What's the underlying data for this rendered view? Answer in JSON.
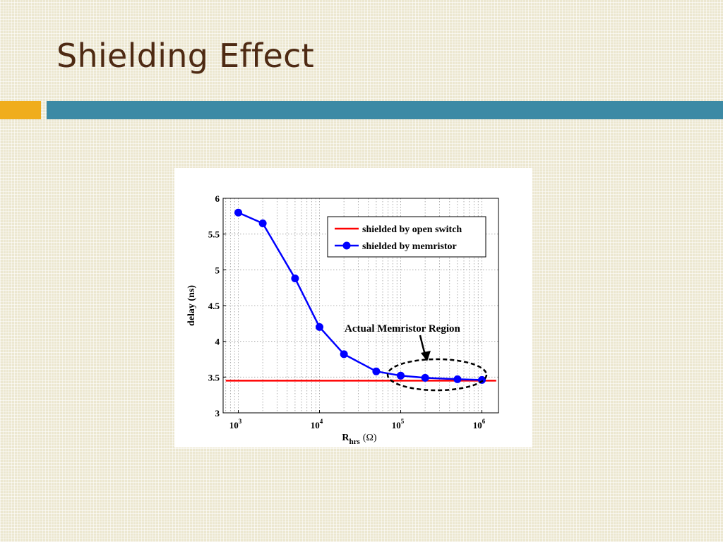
{
  "slide": {
    "title": "Shielding Effect",
    "accent_color": "#f0ad1c",
    "rule_color": "#3c8aa5",
    "title_color": "#4e2a13"
  },
  "chart_data": {
    "type": "line",
    "x_scale": "log",
    "xlabel_main": "R",
    "xlabel_sub": "hrs",
    "xlabel_unit": "(Ω)",
    "ylabel": "delay (ns)",
    "xlim": [
      650,
      1600000
    ],
    "ylim": [
      3,
      6
    ],
    "x_ticks": [
      {
        "value": 1000,
        "base": "10",
        "exp": "3"
      },
      {
        "value": 10000,
        "base": "10",
        "exp": "4"
      },
      {
        "value": 100000,
        "base": "10",
        "exp": "5"
      },
      {
        "value": 1000000,
        "base": "10",
        "exp": "6"
      }
    ],
    "y_ticks": [
      {
        "value": 3,
        "label": "3"
      },
      {
        "value": 3.5,
        "label": "3.5"
      },
      {
        "value": 4,
        "label": "4"
      },
      {
        "value": 4.5,
        "label": "4.5"
      },
      {
        "value": 5,
        "label": "5"
      },
      {
        "value": 5.5,
        "label": "5.5"
      },
      {
        "value": 6,
        "label": "6"
      }
    ],
    "grid": true,
    "legend_position": "top-right",
    "series": [
      {
        "name": "shielded by open switch",
        "color": "#ff0000",
        "marker": false,
        "x": [
          700,
          1500000
        ],
        "y": [
          3.45,
          3.45
        ]
      },
      {
        "name": "shielded by memristor",
        "color": "#0000ff",
        "marker": true,
        "x": [
          1000,
          2000,
          5000,
          10000,
          20000,
          50000,
          100000,
          200000,
          500000,
          1000000
        ],
        "y": [
          5.8,
          5.65,
          4.88,
          4.2,
          3.82,
          3.58,
          3.52,
          3.49,
          3.47,
          3.46
        ]
      }
    ],
    "annotation": {
      "text": "Actual Memristor Region"
    }
  }
}
